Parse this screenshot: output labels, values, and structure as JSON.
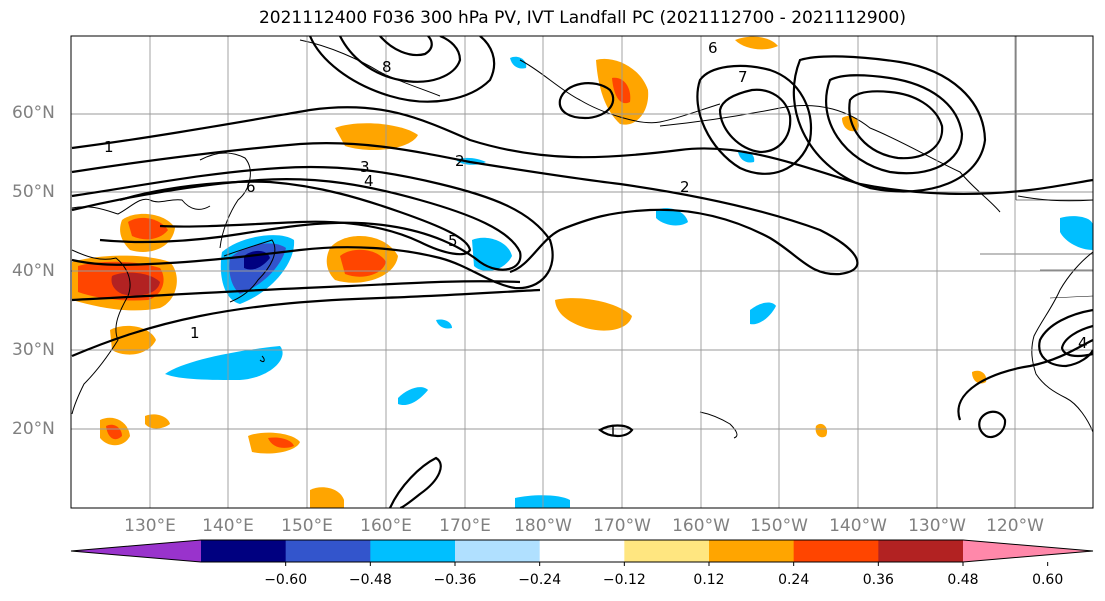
{
  "title": "2021112400 F036 300 hPa PV, IVT Landfall PC (2021112700 - 2021112900)",
  "lat_labels": [
    "60°N",
    "50°N",
    "40°N",
    "30°N",
    "20°N"
  ],
  "lon_labels": [
    "130°E",
    "140°E",
    "150°E",
    "160°E",
    "170°E",
    "180°W",
    "170°W",
    "160°W",
    "150°W",
    "140°W",
    "130°W",
    "120°W"
  ],
  "contour_labels": [
    "1",
    "2",
    "3",
    "4",
    "5",
    "6",
    "7",
    "8"
  ],
  "colorbar": {
    "ticks": [
      "−0.60",
      "−0.48",
      "−0.36",
      "−0.24",
      "−0.12",
      "0.12",
      "0.24",
      "0.36",
      "0.48",
      "0.60"
    ],
    "colors": [
      "#9933cc",
      "#000080",
      "#3355cc",
      "#00bfff",
      "#b0e0ff",
      "#ffffff",
      "#ffe680",
      "#ffa500",
      "#ff4500",
      "#b22222",
      "#ff88aa"
    ]
  }
}
